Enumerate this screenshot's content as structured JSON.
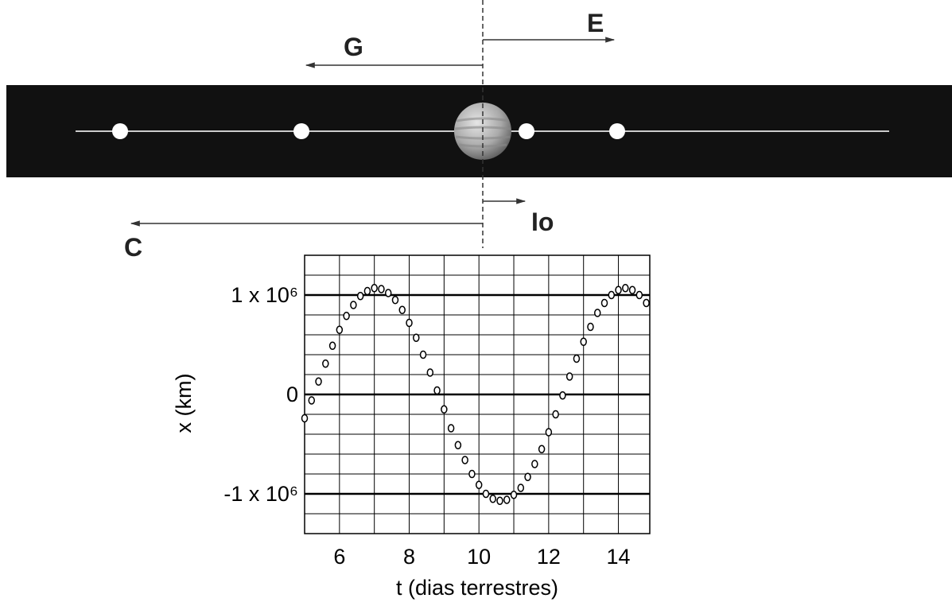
{
  "diagram": {
    "labels": {
      "E": "E",
      "G": "G",
      "Io": "Io",
      "C": "C"
    }
  },
  "chart_data": {
    "type": "scatter",
    "x_label": "t (dias terrestres)",
    "y_label": "x (km)",
    "x": [
      5.0,
      5.2,
      5.4,
      5.6,
      5.8,
      6.0,
      6.2,
      6.4,
      6.6,
      6.8,
      7.0,
      7.2,
      7.4,
      7.6,
      7.8,
      8.0,
      8.2,
      8.4,
      8.6,
      8.8,
      9.0,
      9.2,
      9.4,
      9.6,
      9.8,
      10.0,
      10.2,
      10.4,
      10.6,
      10.8,
      11.0,
      11.2,
      11.4,
      11.6,
      11.8,
      12.0,
      12.2,
      12.4,
      12.6,
      12.8,
      13.0,
      13.2,
      13.4,
      13.6,
      13.8,
      14.0,
      14.2,
      14.4,
      14.6,
      14.8
    ],
    "values": [
      -240000,
      -60000,
      130000,
      310000,
      490000,
      650000,
      790000,
      900000,
      990000,
      1040000,
      1070000,
      1060000,
      1020000,
      950000,
      850000,
      720000,
      570000,
      400000,
      220000,
      40000,
      -150000,
      -340000,
      -510000,
      -660000,
      -800000,
      -910000,
      -1000000,
      -1050000,
      -1070000,
      -1060000,
      -1010000,
      -940000,
      -830000,
      -700000,
      -550000,
      -380000,
      -200000,
      -10000,
      180000,
      360000,
      530000,
      680000,
      820000,
      920000,
      1000000,
      1050000,
      1070000,
      1050000,
      1000000,
      920000
    ],
    "marker_color": "#000000",
    "xlim": [
      5,
      14.9
    ],
    "ylim": [
      -1400000,
      1400000
    ],
    "xticks": [
      6,
      8,
      10,
      12,
      14
    ],
    "yticks": [
      {
        "value": 1000000,
        "label": "1 x 10⁶"
      },
      0,
      {
        "value": -1000000,
        "label": "-1 x 10⁶"
      }
    ],
    "minor_xticks": [
      5,
      7,
      9,
      11,
      13
    ],
    "minor_yticks": [
      -1200000,
      -800000,
      -600000,
      -400000,
      -200000,
      200000,
      400000,
      600000,
      800000,
      1200000
    ],
    "grid": true
  }
}
